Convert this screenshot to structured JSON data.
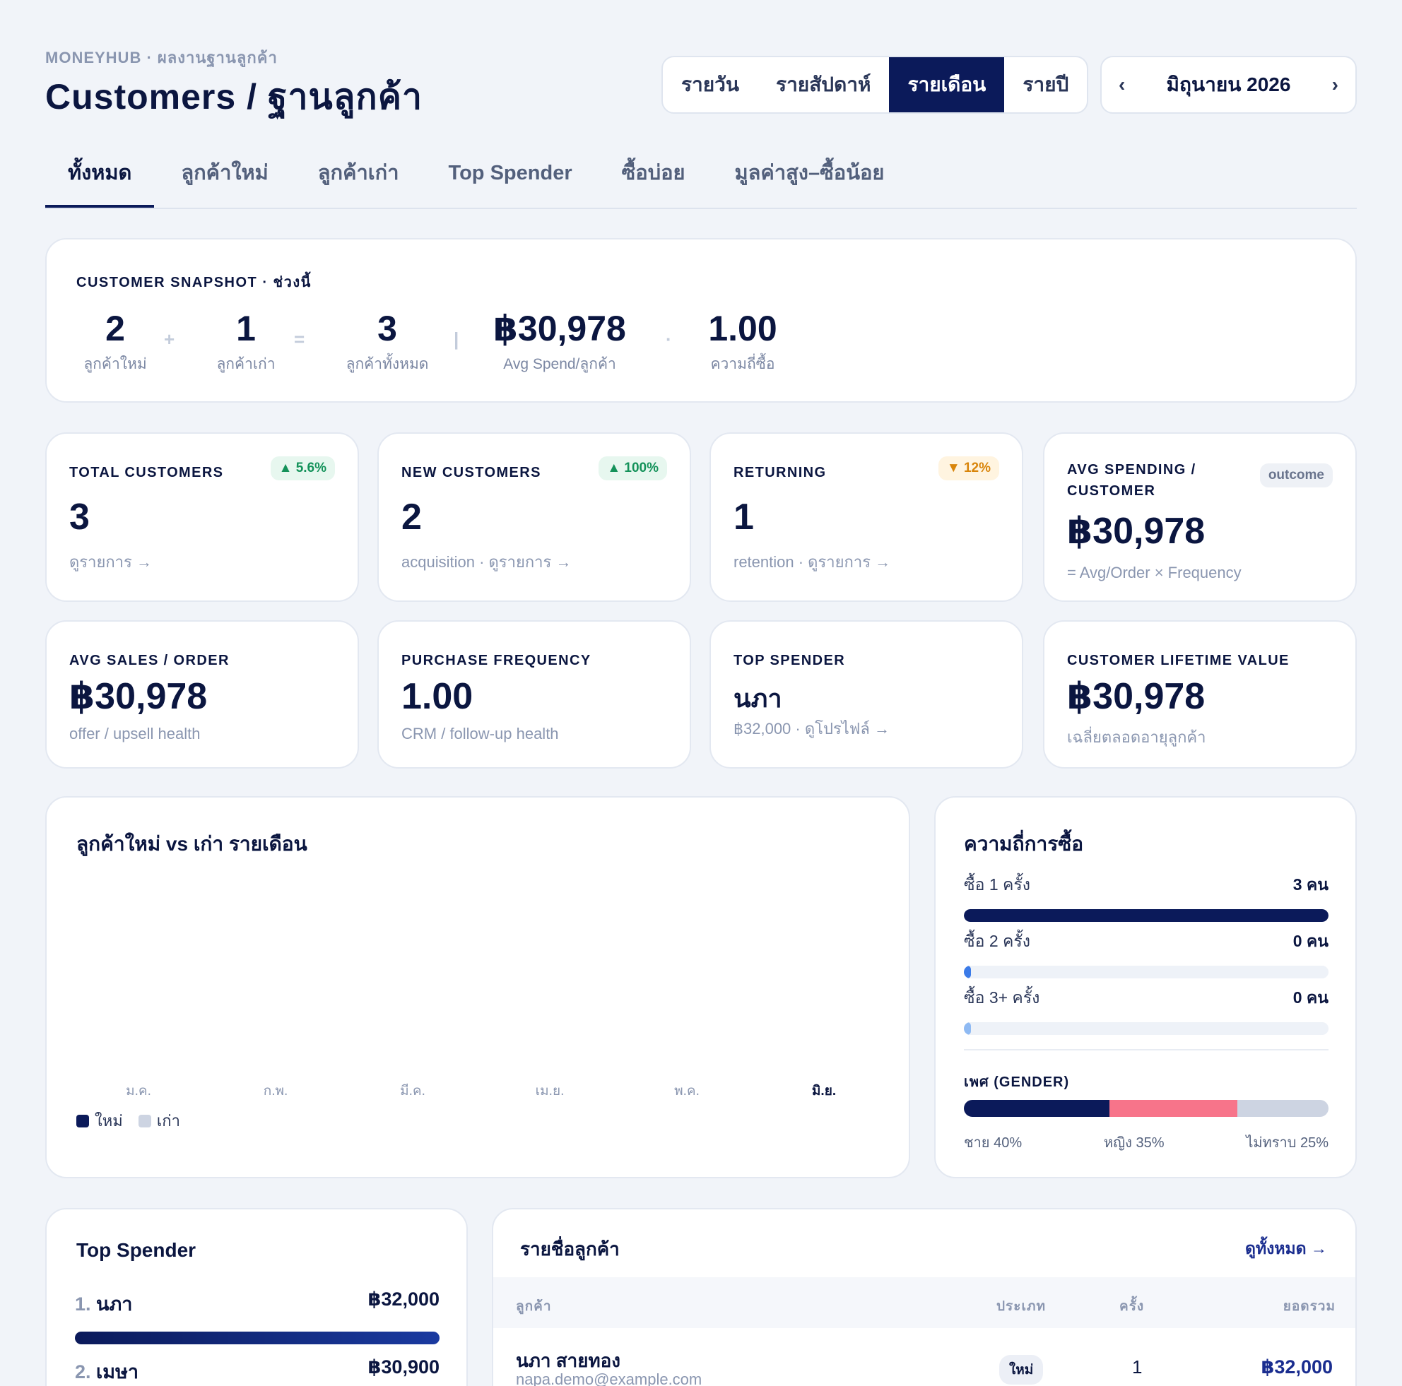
{
  "header": {
    "eyebrow": "MONEYHUB · ผลงานฐานลูกค้า",
    "title": "Customers / ฐานลูกค้า",
    "period_options": [
      "รายวัน",
      "รายสัปดาห์",
      "รายเดือน",
      "รายปี"
    ],
    "period_selected": "รายเดือน",
    "month_label": "มิถุนายน 2026",
    "prev_icon": "chevron-left-icon",
    "next_icon": "chevron-right-icon"
  },
  "tabs": [
    "ทั้งหมด",
    "ลูกค้าใหม่",
    "ลูกค้าเก่า",
    "Top Spender",
    "ซื้อบ่อย",
    "มูลค่าสูง–ซื้อน้อย"
  ],
  "snapshot": {
    "title": "CUSTOMER SNAPSHOT · ช่วงนี้",
    "new": {
      "value": "2",
      "label": "ลูกค้าใหม่"
    },
    "plus": "+",
    "returning": {
      "value": "1",
      "label": "ลูกค้าเก่า"
    },
    "equals": "=",
    "total": {
      "value": "3",
      "label": "ลูกค้าทั้งหมด"
    },
    "sep": "|",
    "avg": {
      "value": "฿30,978",
      "label": "Avg Spend/ลูกค้า"
    },
    "dot": "·",
    "freq": {
      "value": "1.00",
      "label": "ความถี่ซื้อ"
    }
  },
  "kpis_row1": [
    {
      "label": "TOTAL CUSTOMERS",
      "badge": "▲ 5.6%",
      "badge_type": "up",
      "value": "3",
      "sub": "ดูรายการ →"
    },
    {
      "label": "NEW CUSTOMERS",
      "badge": "▲ 100%",
      "badge_type": "up",
      "value": "2",
      "sub": "acquisition · ดูรายการ →"
    },
    {
      "label": "RETURNING",
      "badge": "▼ 12%",
      "badge_type": "down",
      "value": "1",
      "sub": "retention · ดูรายการ →"
    },
    {
      "label": "AVG SPENDING / CUSTOMER",
      "badge": "outcome",
      "badge_type": "neutral",
      "value": "฿30,978",
      "sub": "= Avg/Order × Frequency"
    }
  ],
  "kpis_row2": [
    {
      "label": "AVG SALES / ORDER",
      "value": "฿30,978",
      "sub": "offer / upsell health"
    },
    {
      "label": "PURCHASE FREQUENCY",
      "value": "1.00",
      "sub": "CRM / follow-up health"
    },
    {
      "label": "TOP SPENDER",
      "value": "นภา",
      "sub": "฿32,000 · ดูโปรไฟล์ →"
    },
    {
      "label": "CUSTOMER LIFETIME VALUE",
      "value": "฿30,978",
      "sub": "เฉลี่ยตลอดอายุลูกค้า"
    }
  ],
  "chart": {
    "title": "ลูกค้าใหม่ vs เก่า รายเดือน",
    "months": [
      "ม.ค.",
      "ก.พ.",
      "มี.ค.",
      "เม.ย.",
      "พ.ค.",
      "มิ.ย."
    ],
    "current_month": "มิ.ย.",
    "legend": [
      {
        "label": "ใหม่",
        "color": "#0b1a5a"
      },
      {
        "label": "เก่า",
        "color": "#cdd4e2"
      }
    ]
  },
  "frequency": {
    "title": "ความถี่การซื้อ",
    "rows": [
      {
        "label": "ซื้อ 1 ครั้ง",
        "count": "3 คน",
        "share": 1.0,
        "color": "#0b1a5a"
      },
      {
        "label": "ซื้อ 2 ครั้ง",
        "count": "0 คน",
        "share": 0.0,
        "color": "#3b7be8"
      },
      {
        "label": "ซื้อ 3+ ครั้ง",
        "count": "0 คน",
        "share": 0.0,
        "color": "#8fbaf3"
      }
    ],
    "gender_title": "เพศ (GENDER)",
    "gender": [
      {
        "label": "ชาย 40%",
        "share": 40,
        "color": "#0b1a5a"
      },
      {
        "label": "หญิง 35%",
        "share": 35,
        "color": "#f7748a"
      },
      {
        "label": "ไม่ทราบ 25%",
        "share": 25,
        "color": "#cdd4e2"
      }
    ]
  },
  "top_spender": {
    "title": "Top Spender",
    "rows": [
      {
        "rank": "1.",
        "name": "นภา",
        "amount": "฿32,000",
        "share": 1.0
      },
      {
        "rank": "2.",
        "name": "เมษา",
        "amount": "฿30,900",
        "share": 0.97
      }
    ]
  },
  "customer_list": {
    "title": "รายชื่อลูกค้า",
    "view_all": "ดูทั้งหมด →",
    "columns": [
      "ลูกค้า",
      "ประเภท",
      "ครั้ง",
      "ยอดรวม"
    ],
    "rows": [
      {
        "name": "นภา สายทอง",
        "email": "napa.demo@example.com",
        "type": "ใหม่",
        "times": "1",
        "total": "฿32,000"
      }
    ]
  }
}
